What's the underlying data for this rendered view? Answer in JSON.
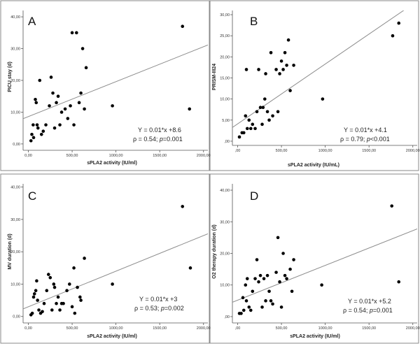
{
  "chart_data": [
    {
      "type": "scatter",
      "letter": "A",
      "xlabel": "sPLA2 activity (IU/ml)",
      "ylabel": "PICU stay (d)",
      "xlim": [
        -60,
        2050
      ],
      "ylim": [
        -2,
        42
      ],
      "xticks": [
        "0,00",
        "500,00",
        "1000,00",
        "1500,00",
        "2000,00"
      ],
      "xtick_values": [
        0,
        500,
        1000,
        1500,
        2000
      ],
      "yticks": [
        "0,00",
        "10,00",
        "20,00",
        "30,00",
        "40,00"
      ],
      "ytick_values": [
        0,
        10,
        20,
        30,
        40
      ],
      "fit": {
        "intercept": 8.6,
        "slope": 0.011
      },
      "equation": "Y = 0.01*x +8.6",
      "stats_prefix": "ρ = 0.54; ",
      "p_symbol": "p",
      "p_value": "=0.001",
      "points": [
        [
          30,
          1
        ],
        [
          40,
          3
        ],
        [
          55,
          6
        ],
        [
          60,
          2
        ],
        [
          80,
          14
        ],
        [
          90,
          13
        ],
        [
          100,
          6
        ],
        [
          110,
          5
        ],
        [
          130,
          20
        ],
        [
          150,
          3
        ],
        [
          170,
          4
        ],
        [
          200,
          6
        ],
        [
          240,
          12
        ],
        [
          260,
          21
        ],
        [
          280,
          16
        ],
        [
          300,
          5
        ],
        [
          320,
          13
        ],
        [
          340,
          15
        ],
        [
          360,
          6
        ],
        [
          380,
          10
        ],
        [
          420,
          11
        ],
        [
          450,
          8
        ],
        [
          480,
          12
        ],
        [
          500,
          35
        ],
        [
          520,
          6
        ],
        [
          550,
          35
        ],
        [
          580,
          13
        ],
        [
          600,
          16
        ],
        [
          620,
          30
        ],
        [
          640,
          11
        ],
        [
          660,
          24
        ],
        [
          960,
          12
        ],
        [
          1760,
          37
        ],
        [
          1840,
          11
        ]
      ]
    },
    {
      "type": "scatter",
      "letter": "B",
      "xlabel": "sPLA2 activity (IU/mL)",
      "ylabel": "PRISM-III24",
      "xlim": [
        -60,
        2050
      ],
      "ylim": [
        -1,
        31
      ],
      "xticks": [
        ",00",
        "500,00",
        "1000,00",
        "1500,00",
        "2000,00"
      ],
      "xtick_values": [
        0,
        500,
        1000,
        1500,
        2000
      ],
      "yticks": [
        ",00",
        "5,00",
        "10,00",
        "15,00",
        "20,00",
        "25,00",
        "30,00"
      ],
      "ytick_values": [
        0,
        5,
        10,
        15,
        20,
        25,
        30
      ],
      "fit": {
        "intercept": 4.1,
        "slope": 0.0142
      },
      "equation": "Y = 0.01*x +4.1",
      "stats_prefix": "ρ = 0.79; ",
      "p_symbol": "p",
      "p_value": "<0.001",
      "points": [
        [
          20,
          1
        ],
        [
          50,
          2
        ],
        [
          70,
          2
        ],
        [
          90,
          6
        ],
        [
          100,
          17
        ],
        [
          110,
          3
        ],
        [
          130,
          5
        ],
        [
          150,
          3
        ],
        [
          170,
          4
        ],
        [
          200,
          3
        ],
        [
          220,
          7
        ],
        [
          240,
          17
        ],
        [
          260,
          8
        ],
        [
          280,
          4
        ],
        [
          290,
          8
        ],
        [
          310,
          10
        ],
        [
          320,
          16
        ],
        [
          340,
          7
        ],
        [
          360,
          5
        ],
        [
          380,
          21
        ],
        [
          400,
          6
        ],
        [
          440,
          17
        ],
        [
          460,
          7
        ],
        [
          480,
          16
        ],
        [
          500,
          19
        ],
        [
          520,
          17
        ],
        [
          540,
          21
        ],
        [
          560,
          18
        ],
        [
          580,
          24
        ],
        [
          600,
          12
        ],
        [
          640,
          18
        ],
        [
          970,
          10
        ],
        [
          1770,
          25
        ],
        [
          1840,
          28
        ]
      ]
    },
    {
      "type": "scatter",
      "letter": "C",
      "xlabel": "sPLA2 activity (IU/ml)",
      "ylabel": "MV duration (d)",
      "xlim": [
        -60,
        2050
      ],
      "ylim": [
        -2,
        41
      ],
      "xticks": [
        "0,00",
        "500,00",
        "1000,00",
        "1500,00",
        "2000,00"
      ],
      "xtick_values": [
        0,
        500,
        1000,
        1500,
        2000
      ],
      "yticks": [
        "0,00",
        "10,00",
        "20,00",
        "30,00",
        "40,00"
      ],
      "ytick_values": [
        0,
        10,
        20,
        30,
        40
      ],
      "fit": {
        "intercept": 3,
        "slope": 0.011
      },
      "equation": "Y = 0.01*x +3",
      "stats_prefix": "ρ = 0.53; ",
      "p_symbol": "p",
      "p_value": "=0.002",
      "points": [
        [
          30,
          0.5
        ],
        [
          45,
          1
        ],
        [
          60,
          6
        ],
        [
          70,
          7
        ],
        [
          85,
          8
        ],
        [
          95,
          11
        ],
        [
          105,
          5
        ],
        [
          120,
          2
        ],
        [
          140,
          1
        ],
        [
          160,
          1.5
        ],
        [
          180,
          4
        ],
        [
          210,
          8
        ],
        [
          230,
          13
        ],
        [
          250,
          12
        ],
        [
          270,
          2
        ],
        [
          290,
          10
        ],
        [
          300,
          9
        ],
        [
          320,
          4
        ],
        [
          340,
          6
        ],
        [
          360,
          2
        ],
        [
          380,
          4
        ],
        [
          400,
          4
        ],
        [
          440,
          8
        ],
        [
          470,
          10
        ],
        [
          500,
          3
        ],
        [
          520,
          15
        ],
        [
          530,
          1
        ],
        [
          560,
          9
        ],
        [
          590,
          6
        ],
        [
          600,
          5
        ],
        [
          640,
          18
        ],
        [
          960,
          10
        ],
        [
          1760,
          34
        ],
        [
          1850,
          15
        ]
      ]
    },
    {
      "type": "scatter",
      "letter": "D",
      "xlabel": "sPLA2 activity (IU/ml)",
      "ylabel": "O2 therapy duration (d)",
      "xlim": [
        -60,
        2050
      ],
      "ylim": [
        -2,
        42
      ],
      "xticks": [
        ",00",
        "500,00",
        "1000,00",
        "1500,00",
        "2000,00"
      ],
      "xtick_values": [
        0,
        500,
        1000,
        1500,
        2000
      ],
      "yticks": [
        ",00",
        "10,00",
        "20,00",
        "30,00",
        "40,00"
      ],
      "ytick_values": [
        0,
        10,
        20,
        30,
        40
      ],
      "fit": {
        "intercept": 5.2,
        "slope": 0.011
      },
      "equation": "Y = 0.01*x +5.2",
      "stats_prefix": "ρ = 0.54; ",
      "p_symbol": "p",
      "p_value": "=0.001",
      "points": [
        [
          20,
          1
        ],
        [
          40,
          1
        ],
        [
          60,
          6
        ],
        [
          70,
          2
        ],
        [
          90,
          10
        ],
        [
          100,
          5
        ],
        [
          110,
          12
        ],
        [
          130,
          3
        ],
        [
          150,
          2
        ],
        [
          170,
          8
        ],
        [
          200,
          12
        ],
        [
          220,
          18
        ],
        [
          240,
          11
        ],
        [
          260,
          13
        ],
        [
          280,
          3
        ],
        [
          300,
          12
        ],
        [
          320,
          5
        ],
        [
          340,
          13
        ],
        [
          360,
          8
        ],
        [
          380,
          5
        ],
        [
          400,
          4
        ],
        [
          440,
          14
        ],
        [
          460,
          25
        ],
        [
          480,
          11
        ],
        [
          500,
          3
        ],
        [
          520,
          20
        ],
        [
          540,
          13
        ],
        [
          560,
          12
        ],
        [
          600,
          15
        ],
        [
          620,
          8
        ],
        [
          640,
          18
        ],
        [
          960,
          10
        ],
        [
          1760,
          35
        ],
        [
          1840,
          11
        ]
      ]
    }
  ]
}
